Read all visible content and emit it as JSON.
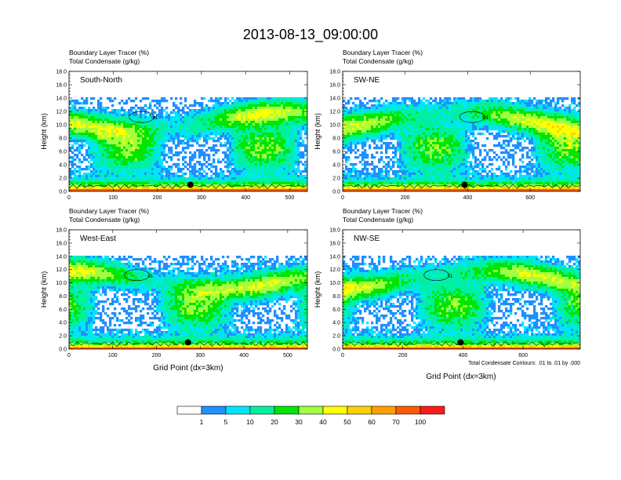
{
  "title": "2013-08-13_09:00:00",
  "label_top_1": "Boundary Layer Tracer",
  "label_top_1_units": "(%)",
  "label_top_2": "Total Condensate",
  "label_top_2_units": "(g/kg)",
  "ylabel": "Height (km)",
  "xlabel": "Grid Point (dx=3km)",
  "contour_note": "Total Condensate Contours: .01 to .01 by .000",
  "contour_label": "01",
  "colors": [
    "#ffffff",
    "#1e90ff",
    "#00e5ff",
    "#00f0a0",
    "#00e600",
    "#a0ff40",
    "#ffff00",
    "#ffd000",
    "#ffa000",
    "#ff5a00",
    "#ff1a1a"
  ],
  "colorbar": {
    "ticks": [
      "1",
      "5",
      "10",
      "20",
      "30",
      "40",
      "50",
      "60",
      "70",
      "100"
    ]
  },
  "chart_data": [
    {
      "type": "heatmap",
      "name": "South-North",
      "panel_title": "South-North",
      "xlim": [
        0,
        540
      ],
      "xticks": [
        "0",
        "100",
        "200",
        "300",
        "400",
        "500"
      ],
      "ylim": [
        0,
        18
      ],
      "yticks": [
        "0.0",
        "2.0",
        "4.0",
        "6.0",
        "8.0",
        "10.0",
        "12.0",
        "14.0",
        "16.0",
        "18.0"
      ],
      "marker": {
        "x": 275,
        "y": 1.0
      },
      "seed": 3
    },
    {
      "type": "heatmap",
      "name": "SW-NE",
      "panel_title": "SW-NE",
      "xlim": [
        0,
        760
      ],
      "xticks": [
        "0",
        "200",
        "400",
        "600"
      ],
      "ylim": [
        0,
        18
      ],
      "yticks": [
        "0.0",
        "2.0",
        "4.0",
        "6.0",
        "8.0",
        "10.0",
        "12.0",
        "14.0",
        "16.0",
        "18.0"
      ],
      "marker": {
        "x": 390,
        "y": 1.0
      },
      "seed": 7
    },
    {
      "type": "heatmap",
      "name": "West-East",
      "panel_title": "West-East",
      "xlim": [
        0,
        545
      ],
      "xticks": [
        "0",
        "100",
        "200",
        "300",
        "400",
        "500"
      ],
      "ylim": [
        0,
        18
      ],
      "yticks": [
        "0.0",
        "2.0",
        "4.0",
        "6.0",
        "8.0",
        "10.0",
        "12.0",
        "14.0",
        "16.0",
        "18.0"
      ],
      "marker": {
        "x": 272,
        "y": 1.0
      },
      "seed": 11
    },
    {
      "type": "heatmap",
      "name": "NW-SE",
      "panel_title": "NW-SE",
      "xlim": [
        0,
        790
      ],
      "xticks": [
        "0",
        "200",
        "400",
        "600"
      ],
      "ylim": [
        0,
        18
      ],
      "yticks": [
        "0.0",
        "2.0",
        "4.0",
        "6.0",
        "8.0",
        "10.0",
        "12.0",
        "14.0",
        "16.0",
        "18.0"
      ],
      "marker": {
        "x": 392,
        "y": 1.0
      },
      "seed": 17
    }
  ]
}
